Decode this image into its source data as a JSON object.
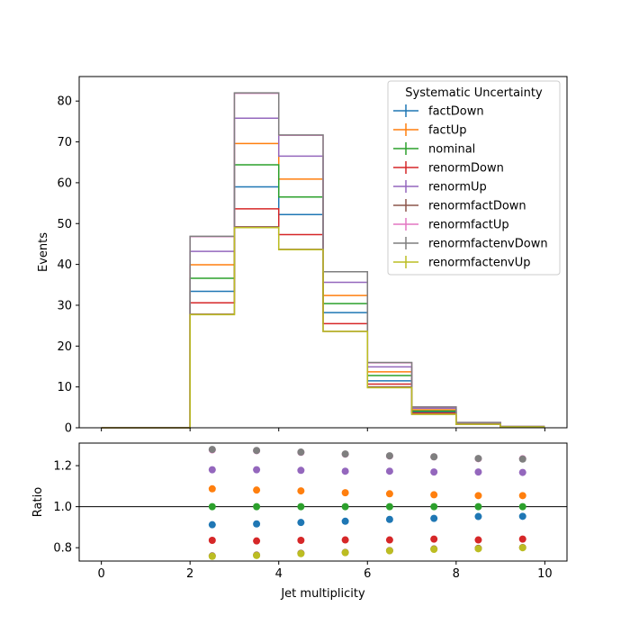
{
  "chart_data": [
    {
      "type": "line",
      "panel": "main",
      "ylabel": "Events",
      "xlabel": "",
      "xlim": [
        -0.5,
        10.5
      ],
      "ylim": [
        0,
        86
      ],
      "grid": false,
      "drawstyle": "step",
      "bin_edges": [
        0,
        2,
        3,
        4,
        5,
        6,
        7,
        8,
        9,
        10
      ],
      "xticks": [
        "0",
        "2",
        "4",
        "6",
        "8",
        "10"
      ],
      "yticks": [
        "0",
        "10",
        "20",
        "30",
        "40",
        "50",
        "60",
        "70",
        "80"
      ],
      "legend": {
        "title": "Systematic Uncertainty",
        "placement": "top-right"
      },
      "series": [
        {
          "name": "factDown",
          "color": "#1f77b4",
          "values": [
            0,
            33.4,
            59.0,
            52.2,
            28.2,
            11.5,
            3.9,
            1.0,
            0.25
          ]
        },
        {
          "name": "factUp",
          "color": "#ff7f0e",
          "values": [
            0,
            39.9,
            69.6,
            60.9,
            32.4,
            13.7,
            4.4,
            1.1,
            0.28
          ]
        },
        {
          "name": "nominal",
          "color": "#2ca02c",
          "values": [
            0,
            36.6,
            64.4,
            56.5,
            30.4,
            12.8,
            4.1,
            1.05,
            0.26
          ]
        },
        {
          "name": "renormDown",
          "color": "#d62728",
          "values": [
            0,
            30.6,
            53.6,
            47.3,
            25.5,
            10.7,
            3.6,
            0.9,
            0.22
          ]
        },
        {
          "name": "renormUp",
          "color": "#9467bd",
          "values": [
            0,
            43.2,
            75.8,
            66.5,
            35.6,
            14.9,
            4.8,
            1.2,
            0.3
          ]
        },
        {
          "name": "renormfactDown",
          "color": "#8c564b",
          "values": [
            0,
            27.8,
            49.2,
            43.7,
            23.6,
            10.0,
            3.3,
            0.85,
            0.21
          ]
        },
        {
          "name": "renormfactUp",
          "color": "#e377c2",
          "values": [
            0,
            46.8,
            81.9,
            71.6,
            38.2,
            15.9,
            5.1,
            1.3,
            0.32
          ]
        },
        {
          "name": "renormfactenvDown",
          "color": "#7f7f7f",
          "values": [
            0,
            46.9,
            82.0,
            71.7,
            38.2,
            16.0,
            5.1,
            1.3,
            0.32
          ]
        },
        {
          "name": "renormfactenvUp",
          "color": "#bcbd22",
          "values": [
            0,
            27.7,
            49.0,
            43.6,
            23.6,
            9.8,
            3.3,
            0.85,
            0.21
          ]
        }
      ]
    },
    {
      "type": "scatter",
      "panel": "ratio",
      "xlabel": "Jet multiplicity",
      "ylabel": "Ratio",
      "xlim": [
        -0.5,
        10.5
      ],
      "ylim": [
        0.735,
        1.31
      ],
      "reference_line": 1.0,
      "xticks": [
        "0",
        "2",
        "4",
        "6",
        "8",
        "10"
      ],
      "yticks": [
        "0.8",
        "1.0",
        "1.2"
      ],
      "x": [
        2.5,
        3.5,
        4.5,
        5.5,
        6.5,
        7.5,
        8.5,
        9.5
      ],
      "series": [
        {
          "name": "factDown",
          "color": "#1f77b4",
          "values": [
            0.912,
            0.916,
            0.923,
            0.929,
            0.938,
            0.943,
            0.952,
            0.953
          ]
        },
        {
          "name": "factUp",
          "color": "#ff7f0e",
          "values": [
            1.087,
            1.081,
            1.077,
            1.068,
            1.063,
            1.058,
            1.054,
            1.054
          ]
        },
        {
          "name": "nominal",
          "color": "#2ca02c",
          "values": [
            1.0,
            1.0,
            1.0,
            1.0,
            1.0,
            1.0,
            1.0,
            1.0
          ]
        },
        {
          "name": "renormDown",
          "color": "#d62728",
          "values": [
            0.836,
            0.833,
            0.836,
            0.838,
            0.838,
            0.842,
            0.838,
            0.842
          ]
        },
        {
          "name": "renormUp",
          "color": "#9467bd",
          "values": [
            1.18,
            1.18,
            1.177,
            1.173,
            1.173,
            1.169,
            1.169,
            1.167
          ]
        },
        {
          "name": "renormfactDown",
          "color": "#8c564b",
          "values": [
            0.76,
            0.764,
            0.773,
            0.777,
            0.786,
            0.794,
            0.797,
            0.801
          ]
        },
        {
          "name": "renormfactUp",
          "color": "#e377c2",
          "values": [
            1.277,
            1.273,
            1.265,
            1.256,
            1.247,
            1.243,
            1.234,
            1.234
          ]
        },
        {
          "name": "renormfactenvDown",
          "color": "#7f7f7f",
          "values": [
            1.279,
            1.274,
            1.266,
            1.257,
            1.248,
            1.243,
            1.235,
            1.232
          ]
        },
        {
          "name": "renormfactenvUp",
          "color": "#bcbd22",
          "values": [
            0.758,
            0.762,
            0.771,
            0.776,
            0.785,
            0.792,
            0.795,
            0.8
          ]
        }
      ]
    }
  ]
}
